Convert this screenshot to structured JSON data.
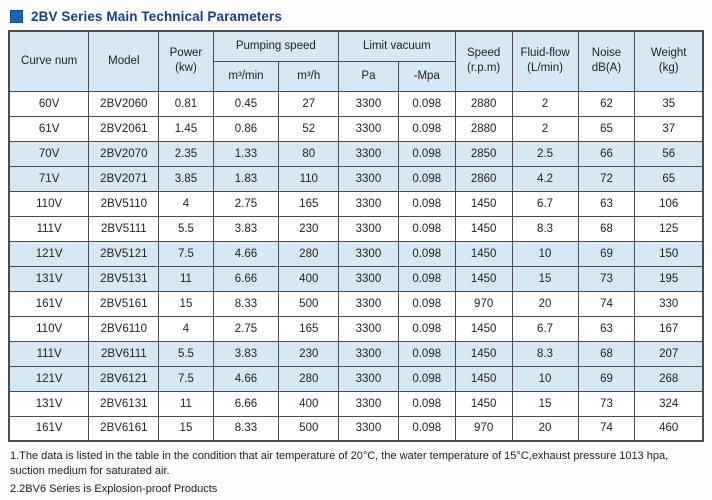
{
  "page": {
    "title": "2BV Series Main Technical Parameters"
  },
  "colors": {
    "light_blue": "#d5e8f4",
    "border": "#4d4d4d",
    "text": "#1f1f1f",
    "title": "#1b3f7e",
    "bullet": "#1e63ae",
    "page_bg": "#fdfdfd"
  },
  "icons": {
    "title_bullet": "blue-square-icon"
  },
  "table": {
    "headers": {
      "curve_num": "Curve num",
      "model": "Model",
      "power": {
        "line1": "Power",
        "line2": "(kw)"
      },
      "pumping_speed": "Pumping speed",
      "m3_min": "m³/min",
      "m3_h": "m³/h",
      "limit_vacuum": "Limit vacuum",
      "pa": "Pa",
      "neg_mpa": "-Mpa",
      "speed": {
        "line1": "Speed",
        "line2": "(r.p.m)"
      },
      "fluid_flow": {
        "line1": "Fluid-flow",
        "line2": "(L/min)"
      },
      "noise": {
        "line1": "Noise",
        "line2": "dB(A)"
      },
      "weight": {
        "line1": "Weight",
        "line2": "(kg)"
      }
    },
    "rows": [
      [
        "60V",
        "2BV2060",
        "0.81",
        "0.45",
        "27",
        "3300",
        "0.098",
        "2880",
        "2",
        "62",
        "35"
      ],
      [
        "61V",
        "2BV2061",
        "1.45",
        "0.86",
        "52",
        "3300",
        "0.098",
        "2880",
        "2",
        "65",
        "37"
      ],
      [
        "70V",
        "2BV2070",
        "2.35",
        "1.33",
        "80",
        "3300",
        "0.098",
        "2850",
        "2.5",
        "66",
        "56"
      ],
      [
        "71V",
        "2BV2071",
        "3.85",
        "1.83",
        "110",
        "3300",
        "0.098",
        "2860",
        "4.2",
        "72",
        "65"
      ],
      [
        "110V",
        "2BV5110",
        "4",
        "2.75",
        "165",
        "3300",
        "0.098",
        "1450",
        "6.7",
        "63",
        "106"
      ],
      [
        "111V",
        "2BV5111",
        "5.5",
        "3.83",
        "230",
        "3300",
        "0.098",
        "1450",
        "8.3",
        "68",
        "125"
      ],
      [
        "121V",
        "2BV5121",
        "7.5",
        "4.66",
        "280",
        "3300",
        "0.098",
        "1450",
        "10",
        "69",
        "150"
      ],
      [
        "131V",
        "2BV5131",
        "11",
        "6.66",
        "400",
        "3300",
        "0.098",
        "1450",
        "15",
        "73",
        "195"
      ],
      [
        "161V",
        "2BV5161",
        "15",
        "8.33",
        "500",
        "3300",
        "0.098",
        "970",
        "20",
        "74",
        "330"
      ],
      [
        "110V",
        "2BV6110",
        "4",
        "2.75",
        "165",
        "3300",
        "0.098",
        "1450",
        "6.7",
        "63",
        "167"
      ],
      [
        "111V",
        "2BV6111",
        "5.5",
        "3.83",
        "230",
        "3300",
        "0.098",
        "1450",
        "8.3",
        "68",
        "207"
      ],
      [
        "121V",
        "2BV6121",
        "7.5",
        "4.66",
        "280",
        "3300",
        "0.098",
        "1450",
        "10",
        "69",
        "268"
      ],
      [
        "131V",
        "2BV6131",
        "11",
        "6.66",
        "400",
        "3300",
        "0.098",
        "1450",
        "15",
        "73",
        "324"
      ],
      [
        "161V",
        "2BV6161",
        "15",
        "8.33",
        "500",
        "3300",
        "0.098",
        "970",
        "20",
        "74",
        "460"
      ]
    ]
  },
  "footnotes": [
    "1.The data is listed in the table in the condition that air temperature of 20°C, the water temperature of 15°C,exhaust pressure 1013 hpa, suction medium for saturated air.",
    "2.2BV6 Series is Explosion-proof Products"
  ]
}
